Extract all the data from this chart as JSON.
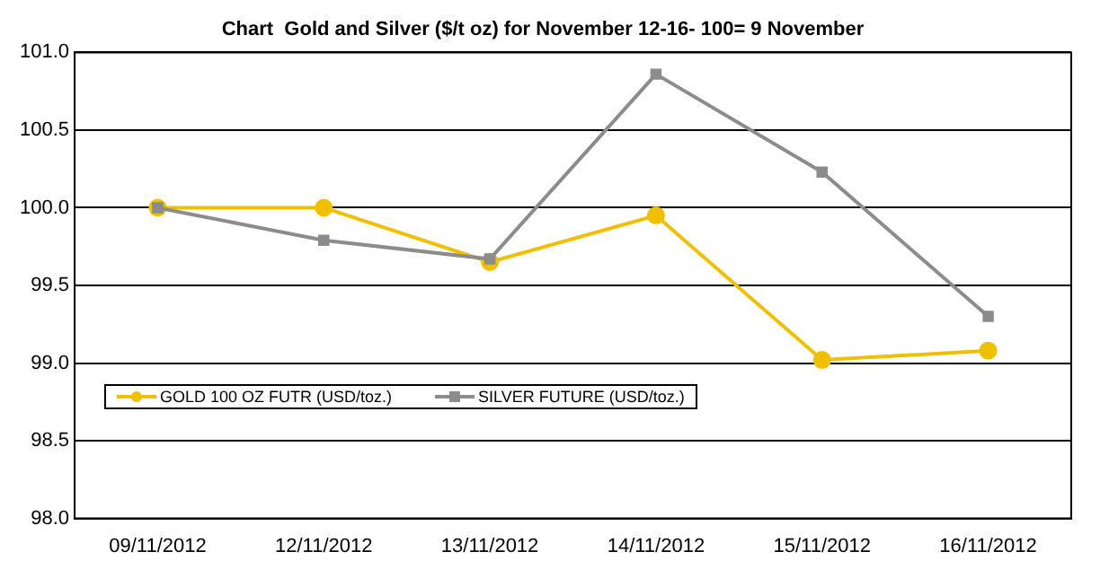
{
  "chart_data": {
    "type": "line",
    "title": "Chart  Gold and Silver ($/t oz) for November 12-16- 100= 9 November",
    "categories": [
      "09/11/2012",
      "12/11/2012",
      "13/11/2012",
      "14/11/2012",
      "15/11/2012",
      "16/11/2012"
    ],
    "series": [
      {
        "name": "GOLD 100 OZ FUTR (USD/toz.)",
        "color": "#f0c000",
        "marker": "circle",
        "values": [
          100.0,
          100.0,
          99.65,
          99.95,
          99.02,
          99.08
        ]
      },
      {
        "name": "SILVER FUTURE (USD/toz.)",
        "color": "#8c8c8c",
        "marker": "square",
        "values": [
          100.0,
          99.79,
          99.67,
          100.86,
          100.23,
          99.3
        ]
      }
    ],
    "ylim": [
      98,
      101
    ],
    "yticks": [
      {
        "value": 98,
        "label": "98.0"
      },
      {
        "value": 98.5,
        "label": "98.5"
      },
      {
        "value": 99,
        "label": "99.0"
      },
      {
        "value": 99.5,
        "label": "99.5"
      },
      {
        "value": 100,
        "label": "100.0"
      },
      {
        "value": 100.5,
        "label": "100.5"
      },
      {
        "value": 101,
        "label": "101.0"
      }
    ],
    "grid": "y",
    "legend": "left",
    "line_style": "solid"
  }
}
